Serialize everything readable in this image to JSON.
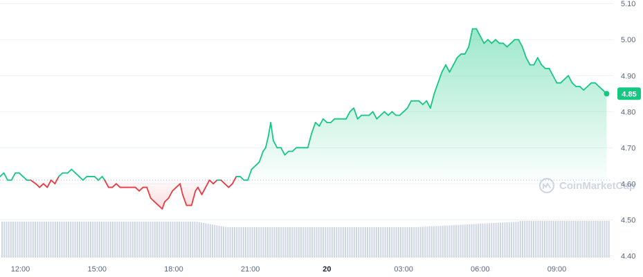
{
  "watermark": {
    "text": "CoinMarketCap",
    "icon": "coinmarketcap-logo-icon"
  },
  "colors": {
    "up": "#16c784",
    "down": "#ea3943",
    "grid": "#eff2f5",
    "baseline": "#a6b0c3",
    "volume": "#cfd6e4",
    "fill_top": "#16c784",
    "axis_text": "#58667e"
  },
  "chart_data": {
    "type": "area",
    "title": "",
    "xlabel": "",
    "ylabel": "",
    "ylim": [
      4.395,
      5.11
    ],
    "y_ticks": [
      "5.10",
      "5.00",
      "4.90",
      "4.80",
      "4.70",
      "4.60",
      "4.50",
      "4.40"
    ],
    "x_range_hours": [
      -12.8,
      11.1
    ],
    "x_ticks": [
      {
        "label": "12:00",
        "hour": -12,
        "bold": false
      },
      {
        "label": "15:00",
        "hour": -9,
        "bold": false
      },
      {
        "label": "18:00",
        "hour": -6,
        "bold": false
      },
      {
        "label": "21:00",
        "hour": -3,
        "bold": false
      },
      {
        "label": "20",
        "hour": 0,
        "bold": true
      },
      {
        "label": "03:00",
        "hour": 3,
        "bold": false
      },
      {
        "label": "06:00",
        "hour": 6,
        "bold": false
      },
      {
        "label": "09:00",
        "hour": 9,
        "bold": false
      }
    ],
    "reference_price": 4.61,
    "current_price": 4.85,
    "current_price_label": "4.85",
    "grid": true,
    "series": [
      {
        "values": [
          [
            -12.8,
            4.62
          ],
          [
            -12.65,
            4.63
          ],
          [
            -12.5,
            4.61
          ],
          [
            -12.35,
            4.61
          ],
          [
            -12.2,
            4.63
          ],
          [
            -12.05,
            4.63
          ],
          [
            -11.9,
            4.62
          ],
          [
            -11.75,
            4.61
          ],
          [
            -11.6,
            4.61
          ],
          [
            -11.4,
            4.6
          ],
          [
            -11.25,
            4.59
          ],
          [
            -11.1,
            4.6
          ],
          [
            -10.95,
            4.59
          ],
          [
            -10.8,
            4.61
          ],
          [
            -10.65,
            4.6
          ],
          [
            -10.5,
            4.62
          ],
          [
            -10.35,
            4.63
          ],
          [
            -10.15,
            4.63
          ],
          [
            -10.0,
            4.64
          ],
          [
            -9.85,
            4.63
          ],
          [
            -9.7,
            4.62
          ],
          [
            -9.55,
            4.61
          ],
          [
            -9.4,
            4.62
          ],
          [
            -9.25,
            4.62
          ],
          [
            -9.1,
            4.62
          ],
          [
            -8.95,
            4.61
          ],
          [
            -8.8,
            4.62
          ],
          [
            -8.7,
            4.61
          ],
          [
            -8.55,
            4.59
          ],
          [
            -8.4,
            4.59
          ],
          [
            -8.25,
            4.6
          ],
          [
            -8.1,
            4.59
          ],
          [
            -7.95,
            4.59
          ],
          [
            -7.8,
            4.59
          ],
          [
            -7.65,
            4.59
          ],
          [
            -7.5,
            4.59
          ],
          [
            -7.35,
            4.58
          ],
          [
            -7.2,
            4.59
          ],
          [
            -7.05,
            4.59
          ],
          [
            -6.9,
            4.56
          ],
          [
            -6.75,
            4.55
          ],
          [
            -6.6,
            4.54
          ],
          [
            -6.45,
            4.53
          ],
          [
            -6.35,
            4.55
          ],
          [
            -6.2,
            4.56
          ],
          [
            -6.05,
            4.58
          ],
          [
            -5.9,
            4.59
          ],
          [
            -5.75,
            4.6
          ],
          [
            -5.65,
            4.57
          ],
          [
            -5.5,
            4.54
          ],
          [
            -5.3,
            4.54
          ],
          [
            -5.15,
            4.58
          ],
          [
            -5.05,
            4.59
          ],
          [
            -4.9,
            4.57
          ],
          [
            -4.75,
            4.59
          ],
          [
            -4.6,
            4.61
          ],
          [
            -4.45,
            4.6
          ],
          [
            -4.3,
            4.61
          ],
          [
            -4.15,
            4.61
          ],
          [
            -4.0,
            4.6
          ],
          [
            -3.85,
            4.59
          ],
          [
            -3.7,
            4.6
          ],
          [
            -3.55,
            4.62
          ],
          [
            -3.4,
            4.62
          ],
          [
            -3.25,
            4.61
          ],
          [
            -3.1,
            4.61
          ],
          [
            -2.95,
            4.64
          ],
          [
            -2.8,
            4.65
          ],
          [
            -2.65,
            4.66
          ],
          [
            -2.5,
            4.69
          ],
          [
            -2.4,
            4.7
          ],
          [
            -2.3,
            4.73
          ],
          [
            -2.2,
            4.77
          ],
          [
            -2.1,
            4.72
          ],
          [
            -1.95,
            4.7
          ],
          [
            -1.8,
            4.7
          ],
          [
            -1.65,
            4.68
          ],
          [
            -1.5,
            4.69
          ],
          [
            -1.35,
            4.69
          ],
          [
            -1.2,
            4.7
          ],
          [
            -1.05,
            4.7
          ],
          [
            -0.9,
            4.7
          ],
          [
            -0.75,
            4.7
          ],
          [
            -0.6,
            4.74
          ],
          [
            -0.45,
            4.77
          ],
          [
            -0.3,
            4.76
          ],
          [
            -0.15,
            4.78
          ],
          [
            0.0,
            4.77
          ],
          [
            0.15,
            4.77
          ],
          [
            0.3,
            4.78
          ],
          [
            0.45,
            4.78
          ],
          [
            0.6,
            4.78
          ],
          [
            0.75,
            4.78
          ],
          [
            0.9,
            4.8
          ],
          [
            1.05,
            4.81
          ],
          [
            1.2,
            4.78
          ],
          [
            1.35,
            4.79
          ],
          [
            1.5,
            4.79
          ],
          [
            1.65,
            4.79
          ],
          [
            1.8,
            4.8
          ],
          [
            1.95,
            4.78
          ],
          [
            2.1,
            4.79
          ],
          [
            2.25,
            4.8
          ],
          [
            2.4,
            4.79
          ],
          [
            2.55,
            4.8
          ],
          [
            2.7,
            4.79
          ],
          [
            2.85,
            4.79
          ],
          [
            3.0,
            4.8
          ],
          [
            3.15,
            4.81
          ],
          [
            3.3,
            4.83
          ],
          [
            3.45,
            4.83
          ],
          [
            3.6,
            4.83
          ],
          [
            3.75,
            4.82
          ],
          [
            3.9,
            4.83
          ],
          [
            4.05,
            4.81
          ],
          [
            4.2,
            4.85
          ],
          [
            4.35,
            4.88
          ],
          [
            4.5,
            4.91
          ],
          [
            4.65,
            4.93
          ],
          [
            4.8,
            4.91
          ],
          [
            4.95,
            4.93
          ],
          [
            5.1,
            4.95
          ],
          [
            5.25,
            4.96
          ],
          [
            5.4,
            4.96
          ],
          [
            5.55,
            4.98
          ],
          [
            5.7,
            5.03
          ],
          [
            5.85,
            5.03
          ],
          [
            6.0,
            5.01
          ],
          [
            6.15,
            4.99
          ],
          [
            6.3,
            5.0
          ],
          [
            6.45,
            4.99
          ],
          [
            6.6,
            5.0
          ],
          [
            6.75,
            4.99
          ],
          [
            6.9,
            4.99
          ],
          [
            7.05,
            4.98
          ],
          [
            7.2,
            4.99
          ],
          [
            7.35,
            5.0
          ],
          [
            7.5,
            5.0
          ],
          [
            7.65,
            4.98
          ],
          [
            7.8,
            4.95
          ],
          [
            7.95,
            4.93
          ],
          [
            8.1,
            4.93
          ],
          [
            8.25,
            4.95
          ],
          [
            8.4,
            4.93
          ],
          [
            8.55,
            4.92
          ],
          [
            8.7,
            4.92
          ],
          [
            8.85,
            4.9
          ],
          [
            9.0,
            4.88
          ],
          [
            9.15,
            4.88
          ],
          [
            9.3,
            4.89
          ],
          [
            9.45,
            4.9
          ],
          [
            9.6,
            4.88
          ],
          [
            9.75,
            4.87
          ],
          [
            9.9,
            4.87
          ],
          [
            10.05,
            4.86
          ],
          [
            10.2,
            4.87
          ],
          [
            10.35,
            4.88
          ],
          [
            10.5,
            4.88
          ],
          [
            10.65,
            4.87
          ],
          [
            10.8,
            4.86
          ],
          [
            10.95,
            4.85
          ]
        ]
      }
    ]
  }
}
